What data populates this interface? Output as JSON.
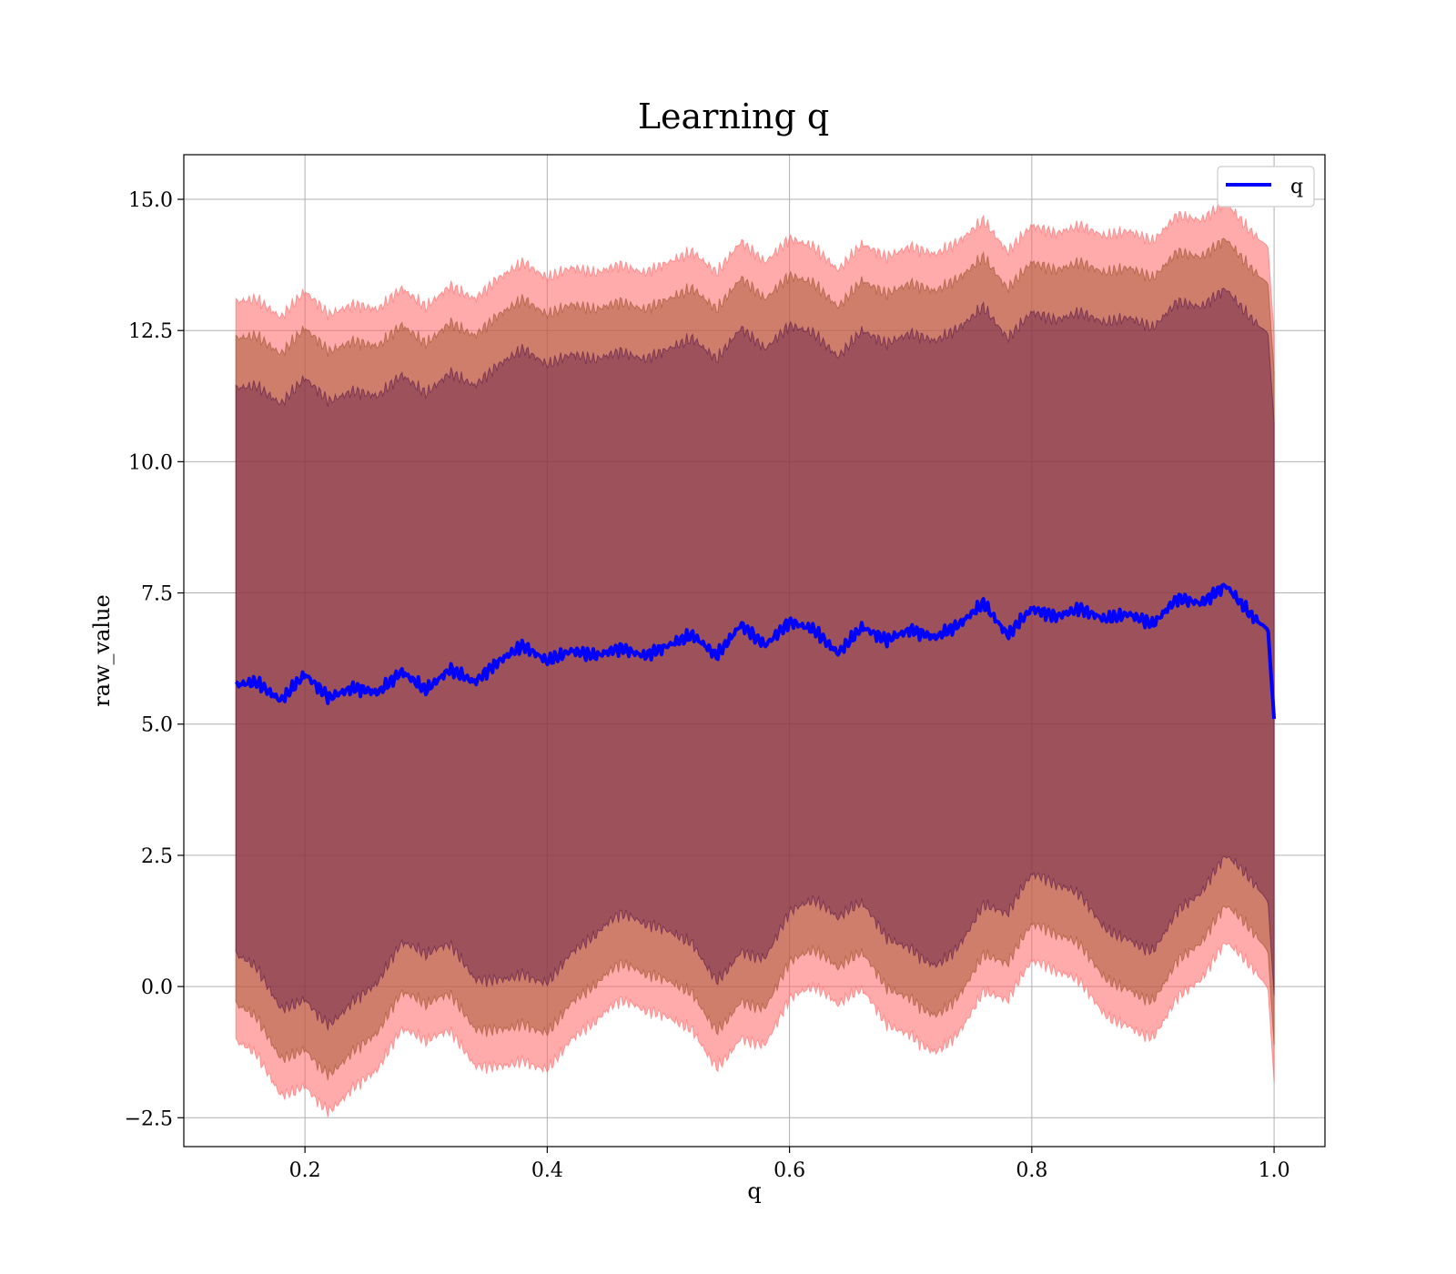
{
  "chart_data": {
    "type": "line",
    "title": "Learning q",
    "xlabel": "q",
    "ylabel": "raw_value",
    "xlim": [
      0.1,
      1.042
    ],
    "ylim": [
      -3.05,
      15.85
    ],
    "xticks": [
      0.2,
      0.4,
      0.6,
      0.8,
      1.0
    ],
    "xtick_labels": [
      "0.2",
      "0.4",
      "0.6",
      "0.8",
      "1.0"
    ],
    "yticks": [
      -2.5,
      0.0,
      2.5,
      5.0,
      7.5,
      10.0,
      12.5,
      15.0
    ],
    "ytick_labels": [
      "−2.5",
      "0.0",
      "2.5",
      "5.0",
      "7.5",
      "10.0",
      "12.5",
      "15.0"
    ],
    "grid": true,
    "legend": {
      "position": "top-right",
      "entries": [
        "q"
      ]
    },
    "colors": {
      "line": "#0000ff",
      "band_outer": "#ff6666",
      "band_middle": "#a0522d",
      "band_inner": "#5e1a48"
    },
    "series": [
      {
        "name": "q",
        "x": [
          0.143,
          0.16,
          0.18,
          0.2,
          0.22,
          0.24,
          0.26,
          0.28,
          0.3,
          0.32,
          0.34,
          0.36,
          0.38,
          0.4,
          0.42,
          0.44,
          0.46,
          0.48,
          0.5,
          0.52,
          0.54,
          0.56,
          0.58,
          0.6,
          0.62,
          0.64,
          0.66,
          0.68,
          0.7,
          0.72,
          0.74,
          0.76,
          0.78,
          0.8,
          0.82,
          0.84,
          0.86,
          0.88,
          0.9,
          0.92,
          0.94,
          0.96,
          0.98,
          0.995,
          1.0
        ],
        "values": [
          5.75,
          5.8,
          5.45,
          5.95,
          5.5,
          5.7,
          5.6,
          6.0,
          5.65,
          6.05,
          5.8,
          6.2,
          6.5,
          6.2,
          6.4,
          6.3,
          6.45,
          6.3,
          6.5,
          6.7,
          6.3,
          6.9,
          6.5,
          6.95,
          6.8,
          6.35,
          6.85,
          6.6,
          6.8,
          6.65,
          6.9,
          7.3,
          6.7,
          7.2,
          7.05,
          7.2,
          7.0,
          7.1,
          6.9,
          7.4,
          7.3,
          7.65,
          7.1,
          6.8,
          5.1
        ]
      }
    ]
  }
}
